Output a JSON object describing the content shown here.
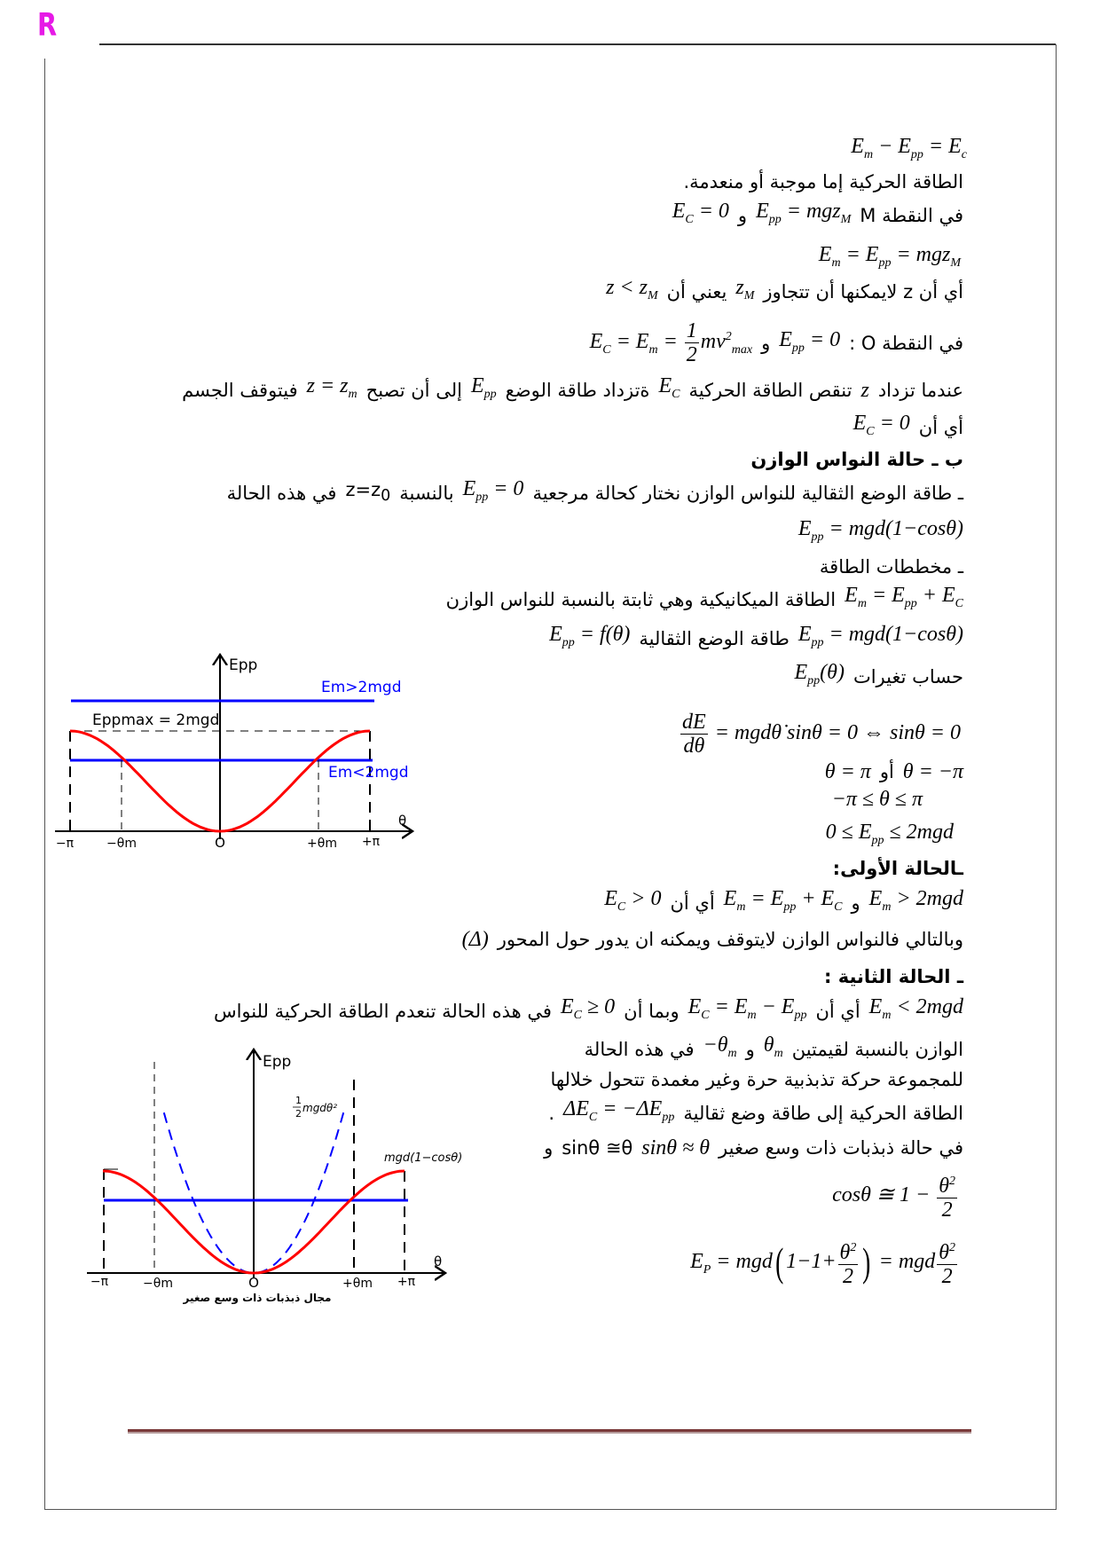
{
  "header": {
    "logo_letter": "R"
  },
  "lines": [
    {
      "segments": [
        {
          "type": "math",
          "text": "E_{m} − E_{pp} = E_{c}"
        }
      ]
    },
    {
      "segments": [
        {
          "type": "ar",
          "text": "الطاقة الحركية إما موجبة أو منعدمة."
        }
      ]
    },
    {
      "segments": [
        {
          "type": "ar",
          "text": "في النقطة M"
        },
        {
          "type": "math",
          "text": "E_{pp} = mgz_{M}"
        },
        {
          "type": "ar",
          "text": "و"
        },
        {
          "type": "math",
          "text": "E_{C} = 0"
        }
      ]
    },
    {
      "segments": [
        {
          "type": "math",
          "text": "E_{m} = E_{pp} = mgz_{M}"
        }
      ]
    },
    {
      "segments": [
        {
          "type": "ar",
          "text": "أي أن z لايمكنها أن تتجاوز"
        },
        {
          "type": "math",
          "text": "z_{M}"
        },
        {
          "type": "ar",
          "text": "يعني أن"
        },
        {
          "type": "math",
          "text": "z < z_{M}"
        }
      ]
    },
    {
      "segments": [
        {
          "type": "ar",
          "text": "في النقطة O :"
        },
        {
          "type": "math",
          "text": "E_{pp} = 0"
        },
        {
          "type": "ar",
          "text": "و"
        },
        {
          "type": "math",
          "text": "E_{C} = E_{m} = \\frac{1}{2}mv^{2}_{max}"
        }
      ]
    },
    {
      "segments": [
        {
          "type": "ar",
          "text": "عندما تزداد"
        },
        {
          "type": "math",
          "text": "z"
        },
        {
          "type": "ar",
          "text": "تنقص الطاقة الحركية"
        },
        {
          "type": "math",
          "text": "E_{C}"
        },
        {
          "type": "ar",
          "text": "ةتزداد طاقة الوضع"
        },
        {
          "type": "math",
          "text": "E_{pp}"
        },
        {
          "type": "ar",
          "text": "إلى أن تصبح"
        },
        {
          "type": "math",
          "text": "z = z_{m}"
        },
        {
          "type": "ar",
          "text": "فيتوقف الجسم"
        }
      ]
    },
    {
      "segments": [
        {
          "type": "ar",
          "text": "أي أن"
        },
        {
          "type": "math",
          "text": "E_{C} = 0"
        }
      ]
    },
    {
      "segments": [
        {
          "type": "bold",
          "text": "ب ـ حالة النواس الوازن"
        }
      ]
    },
    {
      "segments": [
        {
          "type": "ar",
          "text": "ـ طاقة الوضع الثقالية للنواس الوازن نختار كحالة مرجعية"
        },
        {
          "type": "math",
          "text": "E_{pp} = 0"
        },
        {
          "type": "ar",
          "text": "بالنسبة"
        },
        {
          "type": "plain",
          "text": "z=z_{0}"
        },
        {
          "type": "ar",
          "text": "في هذه الحالة"
        }
      ]
    },
    {
      "segments": [
        {
          "type": "math",
          "text": "E_{pp} = mgd(1−cosθ)"
        }
      ]
    },
    {
      "segments": [
        {
          "type": "ar",
          "text": "ـ مخططات الطاقة"
        }
      ]
    },
    {
      "segments": [
        {
          "type": "math",
          "text": "E_{m} = E_{pp} + E_{C}"
        },
        {
          "type": "ar",
          "text": "الطاقة الميكانيكية وهي ثابتة بالنسبة للنواس الوازن"
        }
      ]
    },
    {
      "segments": [
        {
          "type": "math",
          "text": "E_{pp} = mgd(1−cosθ)"
        },
        {
          "type": "ar",
          "text": "طاقة الوضع الثقالية"
        },
        {
          "type": "math",
          "text": "E_{pp} = f(θ)"
        }
      ]
    },
    {
      "segments": [
        {
          "type": "ar",
          "text": "حساب تغيرات"
        },
        {
          "type": "math",
          "text": "E_{pp}(θ)"
        }
      ]
    },
    {
      "segments": [
        {
          "type": "math",
          "text": "\\frac{dE}{dθ} = mgdθ̇ sinθ = 0 ⇔ sinθ = 0"
        }
      ]
    },
    {
      "segments": [
        {
          "type": "math",
          "text": "θ = −π"
        },
        {
          "type": "ar",
          "text": "أو"
        },
        {
          "type": "math",
          "text": "θ = π"
        }
      ]
    },
    {
      "segments": [
        {
          "type": "math",
          "text": "−π ≤ θ ≤ π"
        }
      ]
    },
    {
      "segments": [
        {
          "type": "math",
          "text": "0 ≤ E_{pp} ≤ 2mgd"
        }
      ]
    },
    {
      "segments": [
        {
          "type": "bold",
          "text": "ـالحالة الأولى:"
        }
      ]
    },
    {
      "segments": [
        {
          "type": "math",
          "text": "E_{m} > 2mgd"
        },
        {
          "type": "ar",
          "text": "و"
        },
        {
          "type": "math",
          "text": "E_{m} = E_{pp} + E_{C}"
        },
        {
          "type": "ar",
          "text": "أي أن"
        },
        {
          "type": "math",
          "text": "E_{C} > 0"
        }
      ]
    },
    {
      "segments": [
        {
          "type": "ar",
          "text": "وبالتالي فالنواس الوازن لايتوقف ويمكنه ان يدور حول المحور"
        },
        {
          "type": "math",
          "text": "(Δ)"
        }
      ]
    },
    {
      "segments": [
        {
          "type": "bold",
          "text": "ـ الحالة الثانية :"
        }
      ]
    },
    {
      "segments": [
        {
          "type": "math",
          "text": "E_{m} < 2mgd"
        },
        {
          "type": "ar",
          "text": "أي أن"
        },
        {
          "type": "math",
          "text": "E_{C} = E_{m} − E_{pp}"
        },
        {
          "type": "ar",
          "text": "وبما أن"
        },
        {
          "type": "math",
          "text": "E_{C} ≥ 0"
        },
        {
          "type": "ar",
          "text": "في هذه الحالة تنعدم الطاقة الحركية للنواس"
        }
      ]
    },
    {
      "segments": [
        {
          "type": "ar",
          "text": "الوازن بالنسبة لقيمتين"
        },
        {
          "type": "math",
          "text": "θ_{m}"
        },
        {
          "type": "ar",
          "text": "و"
        },
        {
          "type": "math",
          "text": "−θ_{m}"
        },
        {
          "type": "ar",
          "text": "في هذه الحالة"
        }
      ]
    },
    {
      "segments": [
        {
          "type": "ar",
          "text": "للمجموعة حركة تذبذبية حرة وغير مغمدة تتحول خلالها"
        }
      ]
    },
    {
      "segments": [
        {
          "type": "ar",
          "text": "الطاقة الحركية إلى طاقة وضع ثقالية"
        },
        {
          "type": "math",
          "text": "ΔE_{C} = −ΔE_{pp}"
        },
        {
          "type": "ar",
          "text": "."
        }
      ]
    },
    {
      "segments": [
        {
          "type": "ar",
          "text": "في حالة ذبذبات ذات وسع صغير"
        },
        {
          "type": "math",
          "text": "sinθ ≈ θ"
        },
        {
          "type": "plain",
          "text": "sinθ ≅θ"
        },
        {
          "type": "ar",
          "text": "و"
        }
      ]
    },
    {
      "segments": [
        {
          "type": "math",
          "text": "cosθ ≅ 1 − \\frac{θ^{2}}{2}"
        }
      ]
    },
    {
      "segments": [
        {
          "type": "math",
          "text": "E_{P} = mgd\\lp1−1+\\frac{θ^{2}}{2}\\rp = mgd\\frac{θ^{2}}{2}"
        }
      ]
    }
  ],
  "figure1": {
    "y_axis_label": "Epp",
    "x_axis_label": "θ",
    "ticks": [
      "−π",
      "−θm",
      "O",
      "+θm",
      "+π"
    ],
    "level_high_label": "Em>2mgd",
    "level_max_label": "Eppmax = 2mgd",
    "level_low_label": "Em<2mgd",
    "curve_color": "#ff0000",
    "level_color": "#0000ff"
  },
  "figure2": {
    "y_axis_label": "Epp",
    "x_axis_label": "θ",
    "ticks": [
      "−π",
      "−θm",
      "O",
      "+θm",
      "+π"
    ],
    "parabola_label_num": "1",
    "parabola_label_den": "2",
    "parabola_label": "mgdθ²",
    "curve_label": "mgd(1−cosθ)",
    "caption": "مجال ذبذبات ذات وسع صغير",
    "curve_color": "#ff0000",
    "level_color": "#0000ff"
  }
}
